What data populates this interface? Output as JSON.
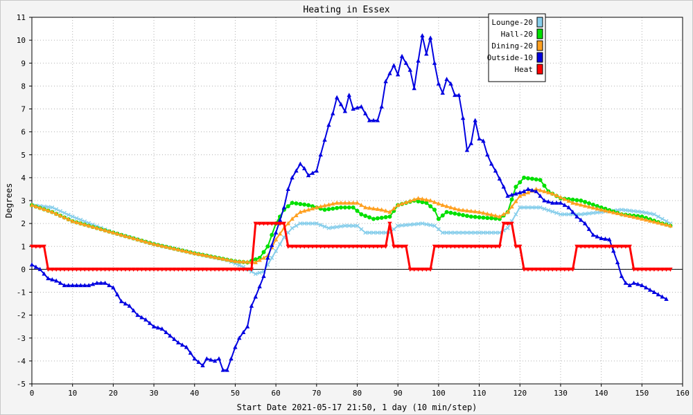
{
  "chart_data": {
    "type": "line",
    "title": "Heating in Essex",
    "xlabel": "Start Date 2021-05-17 21:50, 1 day (10 min/step)",
    "ylabel": "Degrees",
    "xlim": [
      0,
      160
    ],
    "ylim": [
      -5,
      11
    ],
    "xticks": [
      0,
      10,
      20,
      30,
      40,
      50,
      60,
      70,
      80,
      90,
      100,
      110,
      120,
      130,
      140,
      150,
      160
    ],
    "yticks": [
      -5,
      -4,
      -3,
      -2,
      -1,
      0,
      1,
      2,
      3,
      4,
      5,
      6,
      7,
      8,
      9,
      10,
      11
    ],
    "grid": true,
    "legend_position": "top-right",
    "series": [
      {
        "name": "Lounge-20",
        "color": "#87ceeb",
        "marker": "x",
        "points": [
          [
            0,
            2.8
          ],
          [
            5,
            2.7
          ],
          [
            10,
            2.3
          ],
          [
            20,
            1.6
          ],
          [
            30,
            1.1
          ],
          [
            40,
            0.7
          ],
          [
            48,
            0.4
          ],
          [
            52,
            0.1
          ],
          [
            55,
            -0.2
          ],
          [
            57,
            -0.1
          ],
          [
            60,
            0.8
          ],
          [
            62,
            1.4
          ],
          [
            64,
            1.8
          ],
          [
            66,
            2.0
          ],
          [
            70,
            2.0
          ],
          [
            73,
            1.8
          ],
          [
            77,
            1.9
          ],
          [
            80,
            1.9
          ],
          [
            82,
            1.6
          ],
          [
            88,
            1.6
          ],
          [
            90,
            1.9
          ],
          [
            96,
            2.0
          ],
          [
            99,
            1.9
          ],
          [
            101,
            1.6
          ],
          [
            105,
            1.6
          ],
          [
            115,
            1.6
          ],
          [
            117,
            1.8
          ],
          [
            120,
            2.7
          ],
          [
            125,
            2.7
          ],
          [
            130,
            2.4
          ],
          [
            135,
            2.4
          ],
          [
            140,
            2.5
          ],
          [
            145,
            2.6
          ],
          [
            150,
            2.5
          ],
          [
            153,
            2.4
          ],
          [
            157,
            2.0
          ]
        ]
      },
      {
        "name": "Hall-20",
        "color": "#00e000",
        "marker": "circle",
        "points": [
          [
            0,
            2.8
          ],
          [
            5,
            2.5
          ],
          [
            10,
            2.1
          ],
          [
            20,
            1.6
          ],
          [
            30,
            1.1
          ],
          [
            40,
            0.7
          ],
          [
            50,
            0.35
          ],
          [
            53,
            0.3
          ],
          [
            56,
            0.5
          ],
          [
            58,
            1.0
          ],
          [
            60,
            2.0
          ],
          [
            62,
            2.6
          ],
          [
            64,
            2.9
          ],
          [
            68,
            2.8
          ],
          [
            72,
            2.6
          ],
          [
            76,
            2.7
          ],
          [
            79,
            2.7
          ],
          [
            81,
            2.4
          ],
          [
            84,
            2.2
          ],
          [
            88,
            2.3
          ],
          [
            90,
            2.8
          ],
          [
            94,
            3.0
          ],
          [
            97,
            2.9
          ],
          [
            99,
            2.6
          ],
          [
            100,
            2.2
          ],
          [
            102,
            2.5
          ],
          [
            108,
            2.3
          ],
          [
            115,
            2.2
          ],
          [
            117,
            2.5
          ],
          [
            119,
            3.6
          ],
          [
            121,
            4.0
          ],
          [
            125,
            3.9
          ],
          [
            127,
            3.4
          ],
          [
            130,
            3.1
          ],
          [
            135,
            3.0
          ],
          [
            140,
            2.7
          ],
          [
            145,
            2.4
          ],
          [
            150,
            2.3
          ],
          [
            155,
            2.0
          ],
          [
            157,
            1.9
          ]
        ]
      },
      {
        "name": "Dining-20",
        "color": "#ffa020",
        "marker": "triangle",
        "points": [
          [
            0,
            2.8
          ],
          [
            5,
            2.5
          ],
          [
            10,
            2.1
          ],
          [
            20,
            1.6
          ],
          [
            30,
            1.1
          ],
          [
            40,
            0.7
          ],
          [
            50,
            0.35
          ],
          [
            55,
            0.3
          ],
          [
            58,
            0.6
          ],
          [
            60,
            1.3
          ],
          [
            62,
            1.8
          ],
          [
            64,
            2.2
          ],
          [
            66,
            2.5
          ],
          [
            70,
            2.7
          ],
          [
            75,
            2.9
          ],
          [
            80,
            2.9
          ],
          [
            82,
            2.7
          ],
          [
            86,
            2.6
          ],
          [
            88,
            2.5
          ],
          [
            90,
            2.8
          ],
          [
            95,
            3.1
          ],
          [
            98,
            3.0
          ],
          [
            101,
            2.8
          ],
          [
            105,
            2.6
          ],
          [
            110,
            2.5
          ],
          [
            115,
            2.3
          ],
          [
            117,
            2.5
          ],
          [
            120,
            3.2
          ],
          [
            124,
            3.5
          ],
          [
            128,
            3.3
          ],
          [
            133,
            2.9
          ],
          [
            140,
            2.6
          ],
          [
            145,
            2.4
          ],
          [
            150,
            2.2
          ],
          [
            157,
            1.9
          ]
        ]
      },
      {
        "name": "Outside-10",
        "color": "#0000e0",
        "marker": "triangle",
        "points": [
          [
            0,
            0.2
          ],
          [
            2,
            0.0
          ],
          [
            4,
            -0.4
          ],
          [
            6,
            -0.5
          ],
          [
            8,
            -0.7
          ],
          [
            10,
            -0.7
          ],
          [
            12,
            -0.7
          ],
          [
            14,
            -0.7
          ],
          [
            16,
            -0.6
          ],
          [
            18,
            -0.6
          ],
          [
            20,
            -0.8
          ],
          [
            22,
            -1.4
          ],
          [
            24,
            -1.6
          ],
          [
            26,
            -2.0
          ],
          [
            28,
            -2.2
          ],
          [
            30,
            -2.5
          ],
          [
            32,
            -2.6
          ],
          [
            34,
            -2.9
          ],
          [
            36,
            -3.2
          ],
          [
            38,
            -3.4
          ],
          [
            40,
            -3.9
          ],
          [
            42,
            -4.2
          ],
          [
            43,
            -3.9
          ],
          [
            45,
            -4.0
          ],
          [
            46,
            -3.9
          ],
          [
            47,
            -4.4
          ],
          [
            48,
            -4.4
          ],
          [
            49,
            -3.9
          ],
          [
            50,
            -3.4
          ],
          [
            51,
            -3.0
          ],
          [
            53,
            -2.5
          ],
          [
            54,
            -1.6
          ],
          [
            55,
            -1.2
          ],
          [
            57,
            -0.3
          ],
          [
            58,
            0.5
          ],
          [
            60,
            1.6
          ],
          [
            62,
            2.7
          ],
          [
            63,
            3.5
          ],
          [
            64,
            4.0
          ],
          [
            66,
            4.6
          ],
          [
            67,
            4.4
          ],
          [
            68,
            4.1
          ],
          [
            70,
            4.3
          ],
          [
            71,
            5.0
          ],
          [
            73,
            6.3
          ],
          [
            74,
            6.8
          ],
          [
            75,
            7.5
          ],
          [
            77,
            6.9
          ],
          [
            78,
            7.6
          ],
          [
            79,
            7.0
          ],
          [
            81,
            7.1
          ],
          [
            82,
            6.8
          ],
          [
            83,
            6.5
          ],
          [
            85,
            6.5
          ],
          [
            86,
            7.1
          ],
          [
            87,
            8.2
          ],
          [
            89,
            8.9
          ],
          [
            90,
            8.5
          ],
          [
            91,
            9.3
          ],
          [
            93,
            8.7
          ],
          [
            94,
            7.9
          ],
          [
            95,
            9.1
          ],
          [
            96,
            10.2
          ],
          [
            97,
            9.4
          ],
          [
            98,
            10.1
          ],
          [
            99,
            9.0
          ],
          [
            100,
            8.1
          ],
          [
            101,
            7.7
          ],
          [
            102,
            8.3
          ],
          [
            103,
            8.1
          ],
          [
            104,
            7.6
          ],
          [
            105,
            7.6
          ],
          [
            106,
            6.6
          ],
          [
            107,
            5.2
          ],
          [
            108,
            5.5
          ],
          [
            109,
            6.5
          ],
          [
            110,
            5.7
          ],
          [
            111,
            5.6
          ],
          [
            112,
            5.0
          ],
          [
            113,
            4.6
          ],
          [
            114,
            4.3
          ],
          [
            116,
            3.6
          ],
          [
            117,
            3.2
          ],
          [
            119,
            3.3
          ],
          [
            121,
            3.4
          ],
          [
            122,
            3.5
          ],
          [
            124,
            3.4
          ],
          [
            126,
            3.0
          ],
          [
            128,
            2.9
          ],
          [
            130,
            2.9
          ],
          [
            132,
            2.7
          ],
          [
            134,
            2.3
          ],
          [
            136,
            2.0
          ],
          [
            138,
            1.5
          ],
          [
            140,
            1.35
          ],
          [
            142,
            1.3
          ],
          [
            144,
            0.3
          ],
          [
            145,
            -0.3
          ],
          [
            146,
            -0.6
          ],
          [
            147,
            -0.7
          ],
          [
            148,
            -0.6
          ],
          [
            150,
            -0.7
          ],
          [
            152,
            -0.9
          ],
          [
            154,
            -1.1
          ],
          [
            156,
            -1.3
          ]
        ]
      },
      {
        "name": "Heat",
        "color": "#ff0000",
        "marker": "triangle-down",
        "points": [
          [
            0,
            1
          ],
          [
            3,
            1
          ],
          [
            4,
            0
          ],
          [
            54,
            0
          ],
          [
            55,
            2
          ],
          [
            62,
            2
          ],
          [
            63,
            1
          ],
          [
            87,
            1
          ],
          [
            88,
            2
          ],
          [
            89,
            1
          ],
          [
            92,
            1
          ],
          [
            93,
            0
          ],
          [
            98,
            0
          ],
          [
            99,
            1
          ],
          [
            115,
            1
          ],
          [
            116,
            2
          ],
          [
            118,
            2
          ],
          [
            119,
            1
          ],
          [
            120,
            1
          ],
          [
            121,
            0
          ],
          [
            133,
            0
          ],
          [
            134,
            1
          ],
          [
            147,
            1
          ],
          [
            148,
            0
          ],
          [
            157,
            0
          ]
        ]
      }
    ]
  }
}
